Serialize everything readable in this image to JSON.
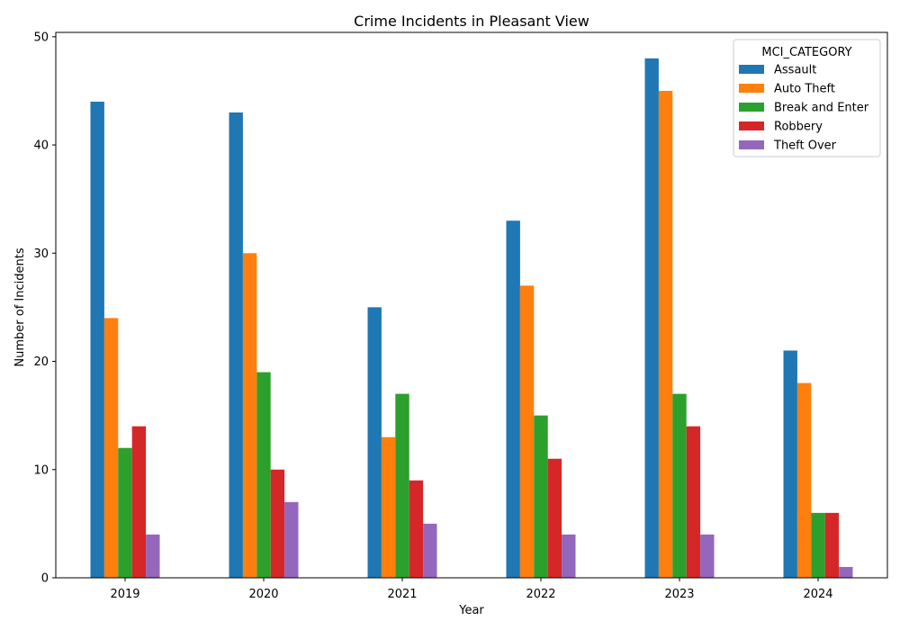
{
  "chart_data": {
    "type": "bar",
    "title": "Crime Incidents in Pleasant View",
    "xlabel": "Year",
    "ylabel": "Number of Incidents",
    "categories": [
      "2019",
      "2020",
      "2021",
      "2022",
      "2023",
      "2024"
    ],
    "series": [
      {
        "name": "Assault",
        "values": [
          44,
          43,
          25,
          33,
          48,
          21
        ],
        "color": "#1f77b4"
      },
      {
        "name": "Auto Theft",
        "values": [
          24,
          30,
          13,
          27,
          45,
          18
        ],
        "color": "#ff7f0e"
      },
      {
        "name": "Break and Enter",
        "values": [
          12,
          19,
          17,
          15,
          17,
          6
        ],
        "color": "#2ca02c"
      },
      {
        "name": "Robbery",
        "values": [
          14,
          10,
          9,
          11,
          14,
          6
        ],
        "color": "#d62728"
      },
      {
        "name": "Theft Over",
        "values": [
          4,
          7,
          5,
          4,
          4,
          1
        ],
        "color": "#9467bd"
      }
    ],
    "ylim": [
      0,
      50.4
    ],
    "yticks": [
      0,
      10,
      20,
      30,
      40,
      50
    ],
    "grid": false,
    "legend": {
      "title": "MCI_CATEGORY",
      "placement": "top-right"
    }
  }
}
